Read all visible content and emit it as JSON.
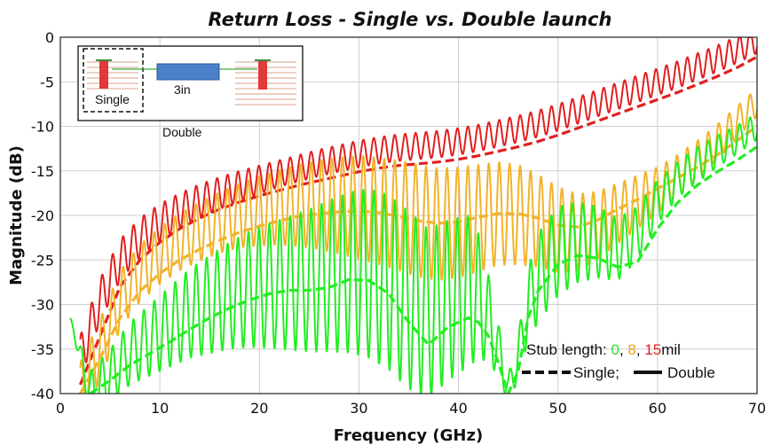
{
  "chart_data": {
    "type": "line",
    "title": "Return Loss - Single vs. Double launch",
    "xlabel": "Frequency (GHz)",
    "ylabel": "Magnitude (dB)",
    "xlim": [
      0,
      70
    ],
    "ylim": [
      -40,
      0
    ],
    "xticks": [
      0,
      10,
      20,
      30,
      40,
      50,
      60,
      70
    ],
    "yticks": [
      0,
      -5,
      -10,
      -15,
      -20,
      -25,
      -30,
      -35,
      -40
    ],
    "grid": true,
    "legend": {
      "placement": "bottom-right",
      "stub_prefix": "Stub length: ",
      "stub_values": [
        "0",
        "8",
        "15"
      ],
      "stub_suffix": "mil",
      "comma": ", ",
      "single_label": "Single;",
      "double_label": "Double"
    },
    "inset": {
      "placement": "top-left",
      "single_label": "Single",
      "trace_label": "3in",
      "double_label": "Double"
    },
    "colors": {
      "0": "#22ee22",
      "8": "#f2b22a",
      "15": "#e02020"
    },
    "series": [
      {
        "name": "Single 15mil",
        "stub": "15",
        "style": "dashed",
        "x": [
          2,
          4,
          6,
          8,
          10,
          12,
          14,
          16,
          18,
          20,
          22,
          24,
          26,
          28,
          30,
          32,
          34,
          36,
          38,
          40,
          42,
          44,
          46,
          48,
          50,
          52,
          54,
          56,
          58,
          60,
          62,
          64,
          66,
          68,
          70
        ],
        "y": [
          -39,
          -33.5,
          -28,
          -25,
          -23,
          -21.5,
          -20.3,
          -19.3,
          -18.5,
          -17.8,
          -17.2,
          -16.6,
          -16.1,
          -15.6,
          -15.1,
          -14.7,
          -14.4,
          -14.2,
          -14,
          -13.7,
          -13.3,
          -12.8,
          -12.3,
          -11.7,
          -11,
          -10.2,
          -9.4,
          -8.6,
          -7.8,
          -7,
          -6.2,
          -5.3,
          -4.4,
          -3.4,
          -2.2
        ]
      },
      {
        "name": "Double 15mil",
        "stub": "15",
        "style": "solid",
        "x": [
          2,
          4,
          6,
          8,
          10,
          12,
          14,
          16,
          18,
          20,
          22,
          24,
          26,
          28,
          30,
          32,
          34,
          36,
          38,
          40,
          42,
          44,
          46,
          48,
          50,
          52,
          54,
          56,
          58,
          60,
          62,
          64,
          66,
          68,
          70
        ],
        "y": [
          -36,
          -29.5,
          -25,
          -22.5,
          -20.8,
          -19.5,
          -18.4,
          -17.5,
          -16.7,
          -16,
          -15.3,
          -14.7,
          -14.1,
          -13.6,
          -13.1,
          -12.7,
          -12.4,
          -12.2,
          -12,
          -11.7,
          -11.3,
          -10.8,
          -10.3,
          -9.7,
          -9,
          -8.2,
          -7.4,
          -6.6,
          -5.8,
          -5,
          -4.2,
          -3.3,
          -2.4,
          -1.4,
          -0.3
        ],
        "ripple_amp": [
          2.5,
          2.4,
          2.3,
          2.2,
          2.1,
          2,
          1.9,
          1.8,
          1.7,
          1.6,
          1.5,
          1.5,
          1.5,
          1.5,
          1.5,
          1.5,
          1.5,
          1.5,
          1.5,
          1.5,
          1.5,
          1.5,
          1.5,
          1.5,
          1.5,
          1.5,
          1.5,
          1.5,
          1.5,
          1.5,
          1.5,
          1.5,
          1.5,
          1.5,
          1.5
        ]
      },
      {
        "name": "Single 8mil",
        "stub": "8",
        "style": "dashed",
        "x": [
          2,
          4,
          6,
          8,
          10,
          12,
          14,
          16,
          18,
          20,
          22,
          24,
          26,
          28,
          30,
          32,
          34,
          36,
          38,
          40,
          42,
          44,
          46,
          48,
          50,
          52,
          54,
          56,
          58,
          60,
          62,
          64,
          66,
          68,
          70
        ],
        "y": [
          -40,
          -36,
          -31.5,
          -28.5,
          -26.5,
          -25,
          -23.8,
          -22.8,
          -21.9,
          -21.2,
          -20.6,
          -20.1,
          -19.8,
          -19.6,
          -19.5,
          -19.7,
          -20.1,
          -20.6,
          -20.9,
          -20.7,
          -20.2,
          -19.8,
          -19.8,
          -20.3,
          -21.1,
          -21.3,
          -20.5,
          -19.3,
          -18.2,
          -17,
          -15.8,
          -14.6,
          -13.2,
          -11.6,
          -10
        ]
      },
      {
        "name": "Double 8mil",
        "stub": "8",
        "style": "solid",
        "x": [
          2,
          4,
          6,
          8,
          10,
          12,
          14,
          16,
          18,
          20,
          22,
          24,
          26,
          28,
          30,
          32,
          34,
          36,
          38,
          40,
          42,
          44,
          46,
          48,
          50,
          52,
          54,
          56,
          58,
          60,
          62,
          64,
          66,
          68,
          70
        ],
        "y": [
          -40,
          -35,
          -29.5,
          -26.5,
          -24.5,
          -23,
          -21.8,
          -20.8,
          -20,
          -19.5,
          -19.1,
          -18.9,
          -18.8,
          -18.9,
          -19.1,
          -19.5,
          -20,
          -20.6,
          -21,
          -20.8,
          -20.3,
          -19.8,
          -19.9,
          -20.6,
          -21.6,
          -21.9,
          -21.1,
          -19.8,
          -18.5,
          -17.2,
          -15.6,
          -13.8,
          -11.8,
          -9.5,
          -7.3
        ],
        "ripple_amp": [
          3.5,
          3.4,
          3.3,
          3.2,
          3.2,
          3.2,
          3.3,
          3.4,
          3.6,
          3.9,
          4.2,
          4.6,
          5,
          5.4,
          5.8,
          6,
          6.2,
          6.3,
          6.3,
          6.2,
          6,
          5.8,
          5.6,
          5.2,
          4.8,
          4.3,
          3.8,
          3.4,
          3,
          2.6,
          2.4,
          2.2,
          2,
          1.8,
          1.6
        ]
      },
      {
        "name": "Single 0mil",
        "stub": "0",
        "style": "dashed",
        "x": [
          3,
          5,
          7,
          9,
          11,
          13,
          15,
          17,
          19,
          21,
          23,
          25,
          27,
          29,
          31,
          33,
          35,
          37,
          39,
          41,
          42,
          43,
          44,
          45,
          46,
          47,
          48,
          50,
          52,
          54,
          56,
          58,
          60,
          62,
          64,
          66,
          68,
          70
        ],
        "y": [
          -40,
          -38.5,
          -36.8,
          -35.5,
          -34.2,
          -32.8,
          -31.5,
          -30.4,
          -29.5,
          -28.8,
          -28.4,
          -28.4,
          -28.1,
          -27.2,
          -27.3,
          -28.8,
          -32,
          -34.5,
          -32.5,
          -31.5,
          -32,
          -33.5,
          -36.5,
          -40,
          -37.5,
          -31.5,
          -28.5,
          -25.5,
          -24.5,
          -24.8,
          -25.8,
          -25.2,
          -21.5,
          -18.6,
          -16.6,
          -15.1,
          -13.8,
          -12.3
        ]
      },
      {
        "name": "Double 0mil",
        "stub": "0",
        "style": "solid",
        "x": [
          1,
          3,
          5,
          7,
          9,
          11,
          13,
          15,
          17,
          19,
          21,
          23,
          25,
          27,
          29,
          31,
          33,
          35,
          37,
          39,
          41,
          42,
          43,
          44,
          45,
          46,
          47,
          48,
          50,
          52,
          54,
          56,
          58,
          60,
          62,
          64,
          66,
          68,
          70
        ],
        "y": [
          -31.5,
          -40,
          -38,
          -35.5,
          -34,
          -32.5,
          -31,
          -30,
          -29,
          -28.3,
          -27.9,
          -27.6,
          -27.3,
          -26.8,
          -26.4,
          -26.5,
          -27.5,
          -29.5,
          -31,
          -29.5,
          -28.5,
          -29,
          -31.5,
          -35,
          -39.5,
          -36,
          -30,
          -27,
          -24,
          -23,
          -23,
          -23.8,
          -22,
          -18.5,
          -16,
          -14.3,
          -12.8,
          -11.5,
          -10
        ],
        "ripple_amp": [
          0,
          2.5,
          3,
          3.5,
          4,
          4.5,
          5,
          5.5,
          6,
          6.5,
          7,
          7.5,
          8,
          8.5,
          9,
          9.5,
          9.8,
          10,
          9.5,
          9,
          8.5,
          7,
          5,
          3,
          1.5,
          2.5,
          4,
          5,
          5,
          4.5,
          4,
          3.5,
          3,
          2.5,
          2,
          2,
          1.8,
          1.6,
          1.5
        ]
      }
    ]
  }
}
